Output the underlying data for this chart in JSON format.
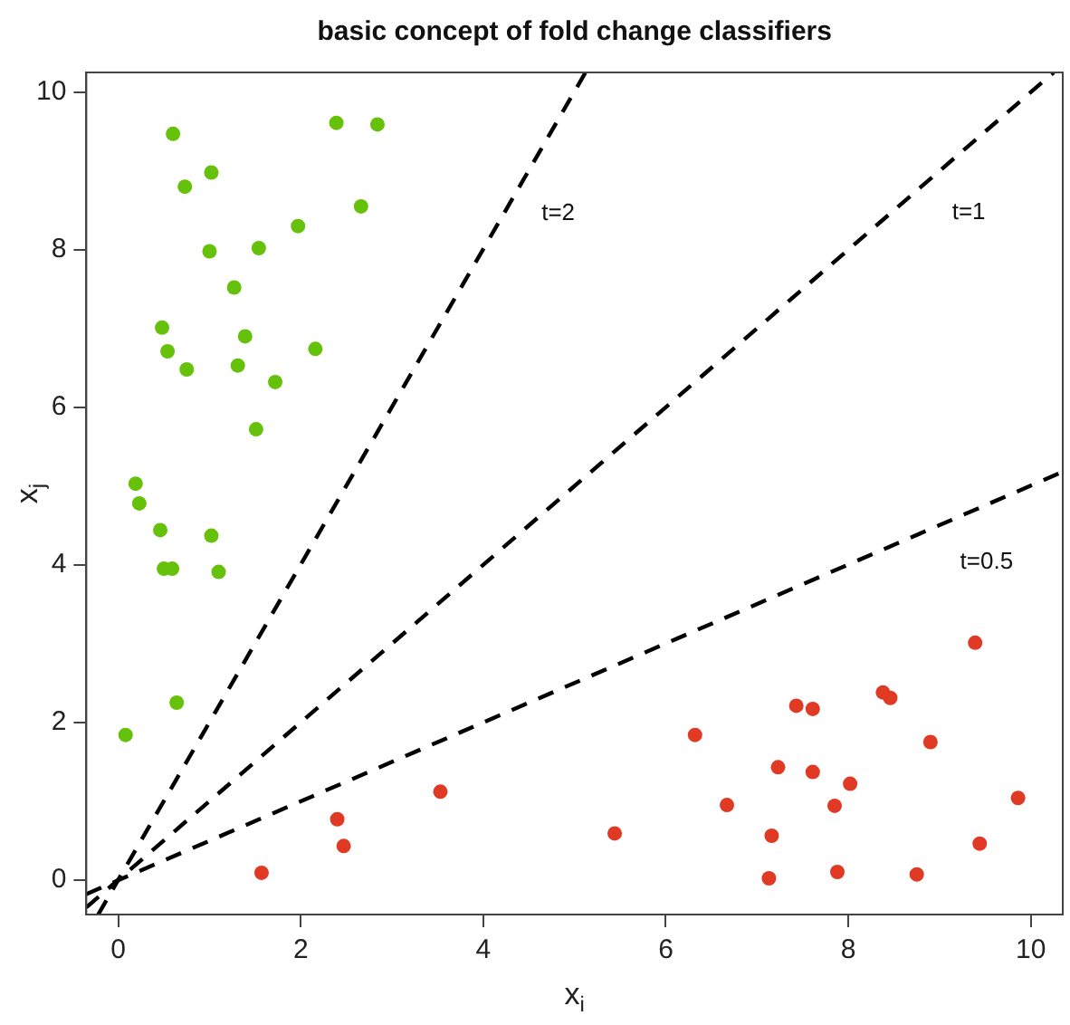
{
  "chart_data": {
    "type": "scatter",
    "title": "basic concept of fold change classifiers",
    "xlabel": "x$_{i}$",
    "ylabel": "x$_{j}$",
    "xlim": [
      -0.35,
      10.35
    ],
    "ylim": [
      -0.44,
      10.25
    ],
    "xticks": [
      0,
      2,
      4,
      6,
      8,
      10
    ],
    "yticks": [
      0,
      2,
      4,
      6,
      8,
      10
    ],
    "grid": false,
    "legend": false,
    "marker": "circle",
    "series": [
      {
        "color": "#66c10a",
        "x": [
          0.6,
          2.39,
          2.84,
          0.73,
          1.02,
          2.66,
          1.97,
          1.0,
          1.54,
          1.27,
          0.48,
          0.54,
          0.75,
          1.39,
          1.31,
          1.72,
          2.16,
          1.51,
          0.19,
          0.23,
          0.46,
          0.5,
          0.59,
          1.02,
          1.1,
          0.64,
          0.08
        ],
        "values": [
          9.47,
          9.61,
          9.59,
          8.8,
          8.98,
          8.55,
          8.3,
          7.98,
          8.02,
          7.52,
          7.01,
          6.71,
          6.48,
          6.9,
          6.53,
          6.32,
          6.74,
          5.72,
          5.03,
          4.78,
          4.44,
          3.95,
          3.95,
          4.37,
          3.91,
          2.25,
          1.84
        ]
      },
      {
        "color": "#e03a24",
        "x": [
          1.57,
          2.4,
          2.47,
          3.53,
          5.44,
          6.32,
          6.67,
          7.23,
          7.43,
          7.61,
          7.61,
          7.16,
          7.13,
          7.85,
          8.02,
          7.88,
          8.38,
          8.46,
          8.9,
          8.75,
          9.39,
          9.44,
          9.86
        ],
        "values": [
          0.09,
          0.77,
          0.43,
          1.12,
          0.59,
          1.84,
          0.95,
          1.43,
          2.21,
          2.17,
          1.37,
          0.56,
          0.02,
          0.94,
          1.22,
          0.1,
          2.38,
          2.31,
          1.75,
          0.07,
          3.01,
          0.46,
          1.04
        ]
      },
      {
        "type": "line",
        "name": "t=2",
        "color": "#000000",
        "line_style": "dashed",
        "marker": "none",
        "x": [
          -0.22,
          5.12
        ],
        "values": [
          -0.44,
          10.25
        ]
      },
      {
        "type": "line",
        "name": "t=1",
        "color": "#000000",
        "line_style": "dashed",
        "marker": "none",
        "x": [
          -0.35,
          10.25
        ],
        "values": [
          -0.35,
          10.25
        ]
      },
      {
        "type": "line",
        "name": "t=0.5",
        "color": "#000000",
        "line_style": "dashed",
        "marker": "none",
        "x": [
          -0.35,
          10.35
        ],
        "values": [
          -0.18,
          5.18
        ]
      }
    ]
  }
}
